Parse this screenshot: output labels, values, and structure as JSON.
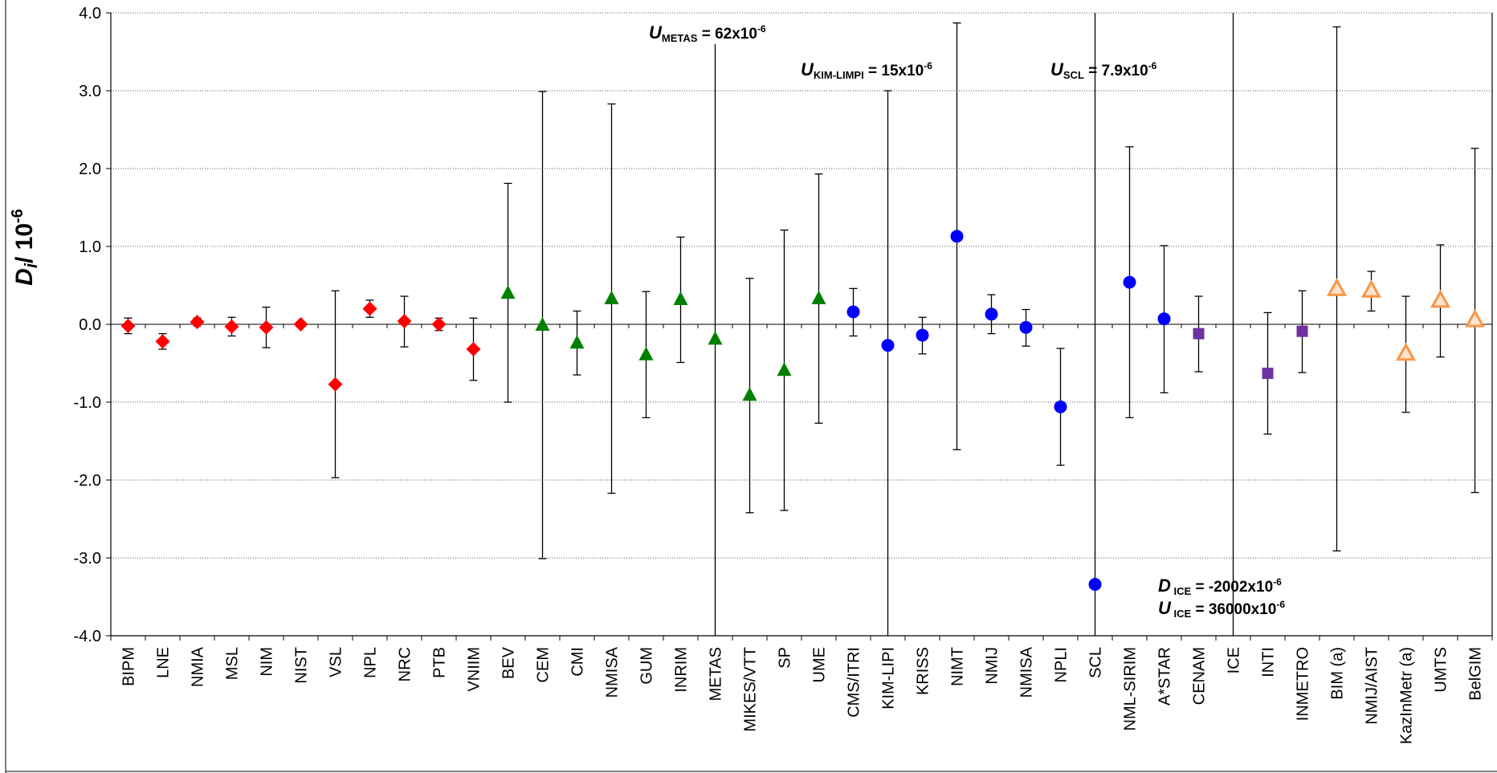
{
  "chart_data": {
    "type": "scatter",
    "title": "",
    "xlabel": "",
    "ylabel": {
      "main": "D",
      "sub": "i",
      "rest": "/ 10",
      "sup": "-6"
    },
    "ylim": [
      -4.0,
      4.0
    ],
    "yticks": [
      "4.0",
      "3.0",
      "2.0",
      "1.0",
      "0.0",
      "-1.0",
      "-2.0",
      "-3.0",
      "-4.0"
    ],
    "grid": "horizontal dotted",
    "categories": [
      "BIPM",
      "LNE",
      "NMIA",
      "MSL",
      "NIM",
      "NIST",
      "VSL",
      "NPL",
      "NRC",
      "PTB",
      "VNIIM",
      "BEV",
      "CEM",
      "CMI",
      "NMISA",
      "GUM",
      "INRIM",
      "METAS",
      "MIKES/VTT",
      "SP",
      "UME",
      "CMS/ITRI",
      "KIM-LIPI",
      "KRISS",
      "NIMT",
      "NMIJ",
      "NMISA",
      "NPLI",
      "SCL",
      "NML-SIRIM",
      "A*STAR",
      "CENAM",
      "ICE",
      "INTI",
      "INMETRO",
      "BIM (a)",
      "NMIJ/AIST",
      "KazInMetr (a)",
      "UMTS",
      "BelGIM"
    ],
    "series_colors": {
      "red_diamond": "#ff0000",
      "green_triangle": "#008000",
      "blue_circle": "#0000ff",
      "purple_square": "#7030a0",
      "orange_triangle": "#f79646"
    },
    "points": [
      {
        "label": "BIPM",
        "marker": "red_diamond",
        "value": -0.02,
        "low": -0.12,
        "high": 0.08
      },
      {
        "label": "LNE",
        "marker": "red_diamond",
        "value": -0.22,
        "low": -0.32,
        "high": -0.12
      },
      {
        "label": "NMIA",
        "marker": "red_diamond",
        "value": 0.03,
        "low": -0.02,
        "high": 0.08
      },
      {
        "label": "MSL",
        "marker": "red_diamond",
        "value": -0.03,
        "low": -0.15,
        "high": 0.09
      },
      {
        "label": "NIM",
        "marker": "red_diamond",
        "value": -0.04,
        "low": -0.3,
        "high": 0.22
      },
      {
        "label": "NIST",
        "marker": "red_diamond",
        "value": 0.0,
        "low": -0.03,
        "high": 0.03
      },
      {
        "label": "VSL",
        "marker": "red_diamond",
        "value": -0.77,
        "low": -1.97,
        "high": 0.43
      },
      {
        "label": "NPL",
        "marker": "red_diamond",
        "value": 0.2,
        "low": 0.09,
        "high": 0.31
      },
      {
        "label": "NRC",
        "marker": "red_diamond",
        "value": 0.04,
        "low": -0.29,
        "high": 0.36
      },
      {
        "label": "PTB",
        "marker": "red_diamond",
        "value": 0.0,
        "low": -0.08,
        "high": 0.08
      },
      {
        "label": "VNIIM",
        "marker": "red_diamond",
        "value": -0.32,
        "low": -0.72,
        "high": 0.08
      },
      {
        "label": "BEV",
        "marker": "green_triangle",
        "value": 0.4,
        "low": -1.0,
        "high": 1.81
      },
      {
        "label": "CEM",
        "marker": "green_triangle",
        "value": -0.01,
        "low": -3.01,
        "high": 2.99
      },
      {
        "label": "CMI",
        "marker": "green_triangle",
        "value": -0.24,
        "low": -0.65,
        "high": 0.17
      },
      {
        "label": "NMISA",
        "marker": "green_triangle",
        "value": 0.33,
        "low": -2.17,
        "high": 2.83
      },
      {
        "label": "GUM",
        "marker": "green_triangle",
        "value": -0.39,
        "low": -1.2,
        "high": 0.42
      },
      {
        "label": "INRIM",
        "marker": "green_triangle",
        "value": 0.32,
        "low": -0.49,
        "high": 1.12
      },
      {
        "label": "METAS",
        "marker": "green_triangle",
        "value": -0.19,
        "low": -4.0,
        "high": 3.6
      },
      {
        "label": "MIKES/VTT",
        "marker": "green_triangle",
        "value": -0.91,
        "low": -2.42,
        "high": 0.59
      },
      {
        "label": "SP",
        "marker": "green_triangle",
        "value": -0.59,
        "low": -2.39,
        "high": 1.21
      },
      {
        "label": "UME",
        "marker": "green_triangle",
        "value": 0.33,
        "low": -1.27,
        "high": 1.93
      },
      {
        "label": "CMS/ITRI",
        "marker": "blue_circle",
        "value": 0.16,
        "low": -0.15,
        "high": 0.46
      },
      {
        "label": "KIM-LIPI",
        "marker": "blue_circle",
        "value": -0.27,
        "low": -4.0,
        "high": 3.0
      },
      {
        "label": "KRISS",
        "marker": "blue_circle",
        "value": -0.14,
        "low": -0.38,
        "high": 0.09
      },
      {
        "label": "NIMT",
        "marker": "blue_circle",
        "value": 1.13,
        "low": -1.61,
        "high": 3.87
      },
      {
        "label": "NMIJ",
        "marker": "blue_circle",
        "value": 0.13,
        "low": -0.12,
        "high": 0.38
      },
      {
        "label": "NMISA",
        "marker": "blue_circle",
        "value": -0.04,
        "low": -0.28,
        "high": 0.19
      },
      {
        "label": "NPLI",
        "marker": "blue_circle",
        "value": -1.06,
        "low": -1.81,
        "high": -0.31
      },
      {
        "label": "SCL",
        "marker": "blue_circle",
        "value": -3.34,
        "low": -4.0,
        "high": 4.0
      },
      {
        "label": "NML-SIRIM",
        "marker": "blue_circle",
        "value": 0.54,
        "low": -1.2,
        "high": 2.28
      },
      {
        "label": "A*STAR",
        "marker": "blue_circle",
        "value": 0.07,
        "low": -0.88,
        "high": 1.01
      },
      {
        "label": "CENAM",
        "marker": "purple_square",
        "value": -0.12,
        "low": -0.61,
        "high": 0.36
      },
      {
        "label": "ICE",
        "marker": "none",
        "value": null,
        "low": -4.0,
        "high": 4.0
      },
      {
        "label": "INTI",
        "marker": "purple_square",
        "value": -0.63,
        "low": -1.41,
        "high": 0.15
      },
      {
        "label": "INMETRO",
        "marker": "purple_square",
        "value": -0.09,
        "low": -0.62,
        "high": 0.43
      },
      {
        "label": "BIM (a)",
        "marker": "orange_triangle",
        "value": 0.45,
        "low": -2.91,
        "high": 3.82
      },
      {
        "label": "NMIJ/AIST",
        "marker": "orange_triangle",
        "value": 0.43,
        "low": 0.17,
        "high": 0.68
      },
      {
        "label": "KazInMetr (a)",
        "marker": "orange_triangle",
        "value": -0.38,
        "low": -1.13,
        "high": 0.36
      },
      {
        "label": "UMTS",
        "marker": "orange_triangle",
        "value": 0.3,
        "low": -0.42,
        "high": 1.02
      },
      {
        "label": "BelGIM",
        "marker": "orange_triangle",
        "value": 0.05,
        "low": -2.16,
        "high": 2.26
      }
    ],
    "annotations": {
      "metas": {
        "main": "U",
        "sub": "METAS",
        "rest": " = 62x10",
        "sup": "-6"
      },
      "kim": {
        "main": "U",
        "sub": "KIM-LIMPI",
        "rest": " = 15x10",
        "sup": "-6"
      },
      "scl": {
        "main": "U",
        "sub": "SCL",
        "rest": " = 7.9x10",
        "sup": "-6"
      },
      "ice_d": {
        "main": "D",
        "sub": " ICE",
        "rest": " = -2002x10",
        "sup": "-6"
      },
      "ice_u": {
        "main": "U",
        "sub": " ICE",
        "rest": " = 36000x10",
        "sup": "-6"
      }
    }
  }
}
